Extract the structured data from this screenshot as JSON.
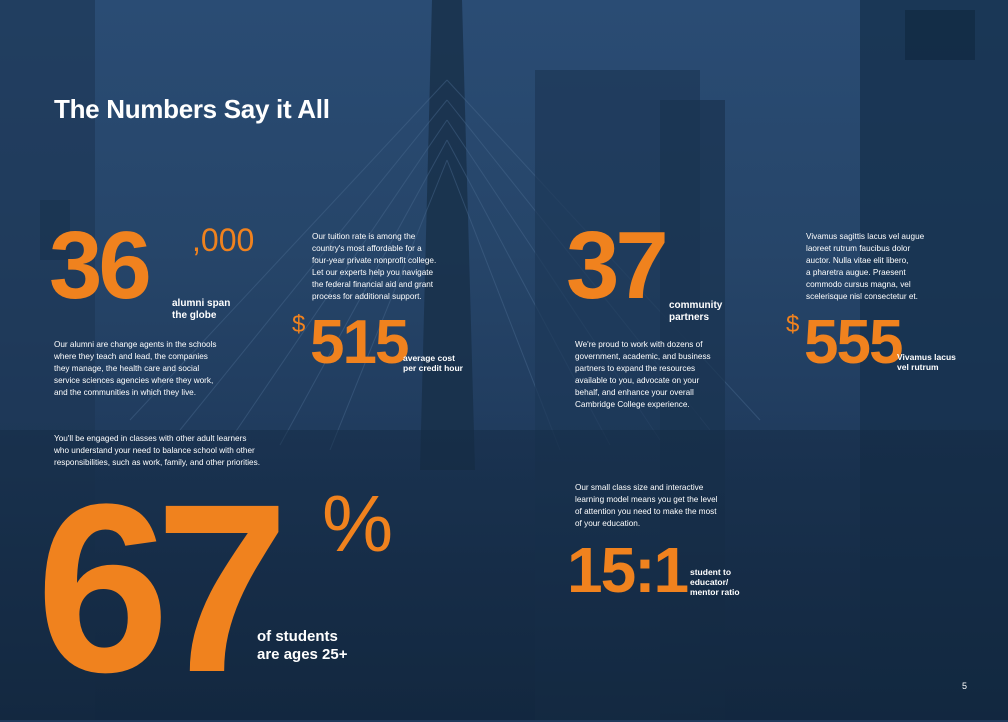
{
  "page": {
    "title": "The Numbers Say it All",
    "page_number": "5",
    "colors": {
      "accent": "#f0821e",
      "background": "#1f3a5c",
      "text": "#ffffff"
    }
  },
  "stats": {
    "alumni": {
      "number": "36",
      "suffix": ",000",
      "label_line1": "alumni span",
      "label_line2": "the globe",
      "description": [
        "Our alumni are change agents in the schools",
        "where they teach and lead, the companies",
        "they manage, the health care and social",
        "service sciences agencies where they work,",
        "and the communities in which they live."
      ]
    },
    "tuition": {
      "intro": [
        "Our tuition rate is among the",
        "country's most affordable for a",
        "four-year private nonprofit college.",
        "Let our experts help you navigate",
        "the federal financial aid and grant",
        "process for additional support."
      ],
      "currency": "$",
      "number": "515",
      "label_line1": "average cost",
      "label_line2": "per credit hour"
    },
    "partners": {
      "number": "37",
      "label_line1": "community",
      "label_line2": "partners",
      "description": [
        "We're proud to work with dozens of",
        "government, academic, and business",
        "partners to expand the resources",
        "available to you, advocate on your",
        "behalf, and enhance your overall",
        "Cambridge College experience."
      ]
    },
    "placeholder": {
      "intro": [
        "Vivamus sagittis lacus vel augue",
        "laoreet rutrum faucibus dolor",
        "auctor. Nulla vitae elit libero,",
        "a pharetra augue. Praesent",
        "commodo cursus magna, vel",
        "scelerisque nisl consectetur et."
      ],
      "currency": "$",
      "number": "555",
      "label_line1": "Vivamus lacus",
      "label_line2": "vel rutrum"
    },
    "adult_learners": {
      "intro": [
        "You'll be engaged in classes with other adult learners",
        "who understand your need to balance school with other",
        "responsibilities, such as work, family, and other priorities."
      ],
      "number": "67",
      "suffix": "%",
      "label_line1": "of students",
      "label_line2": "are ages 25+"
    },
    "ratio": {
      "intro": [
        "Our small class size and interactive",
        "learning model means you get the level",
        "of attention you need to make the most",
        "of your education."
      ],
      "number": "15:1",
      "label_line1": "student to",
      "label_line2": "educator/",
      "label_line3": "mentor ratio"
    }
  }
}
